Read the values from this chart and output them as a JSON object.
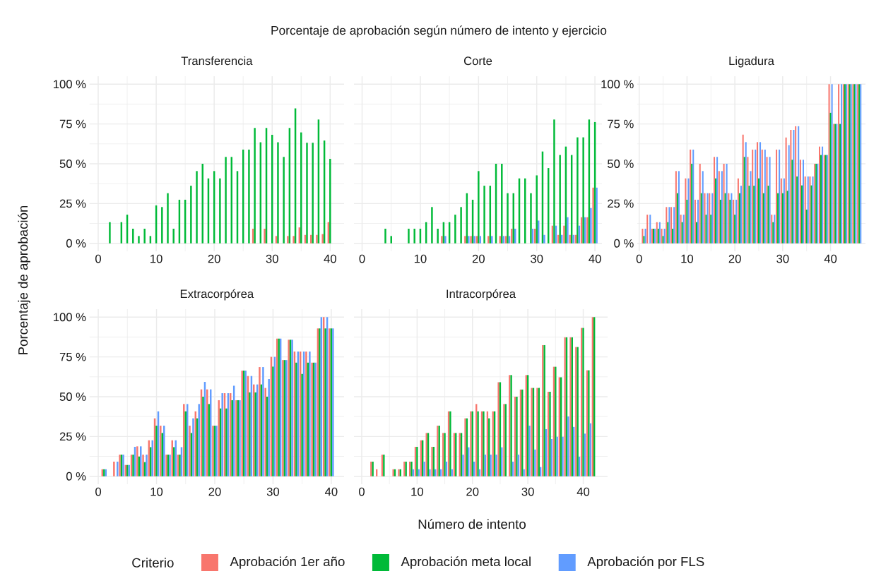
{
  "chart_data": [
    {
      "type": "bar",
      "title": "Porcentaje de aprobación según número de intento y ejercicio",
      "subtitle": "Transferencia",
      "xlabel": "Número de intento",
      "ylabel": "Porcentaje de aprobación",
      "legend_title": "Criterio",
      "legend": "bottom",
      "grid": true,
      "x": [
        2,
        4,
        5,
        6,
        7,
        8,
        9,
        10,
        11,
        12,
        13,
        14,
        15,
        16,
        17,
        18,
        19,
        20,
        21,
        22,
        23,
        24,
        25,
        26,
        27,
        28,
        29,
        30,
        31,
        32,
        33,
        34,
        35,
        36,
        37,
        38,
        39,
        40
      ],
      "xlim": [
        -1.5,
        42.4
      ],
      "xticks": [
        0,
        10,
        20,
        30,
        40
      ],
      "ylim": [
        -5,
        105
      ],
      "yticks": [
        {
          "value": 0,
          "label": "0 %"
        },
        {
          "value": 25,
          "label": "25 %"
        },
        {
          "value": 50,
          "label": "50 %"
        },
        {
          "value": 75,
          "label": "75 %"
        },
        {
          "value": 100,
          "label": "100 %"
        }
      ],
      "series": [
        {
          "name": "Aprobación 1er año",
          "color": "#f8766d",
          "values": [
            null,
            null,
            null,
            null,
            null,
            null,
            null,
            null,
            null,
            null,
            null,
            null,
            null,
            null,
            null,
            null,
            null,
            null,
            null,
            null,
            null,
            null,
            null,
            null,
            9.2,
            null,
            9.2,
            null,
            4.6,
            null,
            4.6,
            4.6,
            10,
            5.3,
            5.3,
            5.3,
            5.8,
            13.3
          ]
        },
        {
          "name": "Aprobación meta local",
          "color": "#00ba38",
          "values": [
            13.3,
            13.3,
            18,
            9.2,
            4.6,
            9.2,
            4.6,
            23.8,
            22.8,
            31.5,
            9.2,
            27.4,
            27.4,
            36.2,
            45.4,
            50,
            40.8,
            45.4,
            40.8,
            54.3,
            54.3,
            45.4,
            58.9,
            58.9,
            72.5,
            63.5,
            72.5,
            68.2,
            63.5,
            54.3,
            72.5,
            84.8,
            69.7,
            63.2,
            63.2,
            77.8,
            64.6,
            53.1
          ]
        },
        {
          "name": "Aprobación por FLS",
          "color": "#619cff",
          "values": [
            null,
            null,
            null,
            null,
            null,
            null,
            null,
            null,
            null,
            null,
            null,
            null,
            null,
            null,
            null,
            null,
            null,
            null,
            null,
            null,
            null,
            null,
            null,
            null,
            null,
            null,
            null,
            null,
            null,
            null,
            null,
            null,
            null,
            null,
            null,
            null,
            null,
            null
          ]
        }
      ]
    },
    {
      "type": "bar",
      "subtitle": "Corte",
      "grid": true,
      "tick_labels": "x",
      "x": [
        4,
        5,
        8,
        9,
        10,
        11,
        12,
        13,
        14,
        15,
        16,
        17,
        18,
        19,
        20,
        21,
        22,
        23,
        24,
        25,
        26,
        27,
        28,
        29,
        30,
        31,
        32,
        33,
        34,
        35,
        36,
        37,
        38,
        39,
        40
      ],
      "xlim": [
        -1.4,
        41.2
      ],
      "xticks": [
        0,
        10,
        20,
        30,
        40
      ],
      "ylim": [
        -5,
        105
      ],
      "yticks": [
        {
          "value": 0,
          "label": null
        },
        {
          "value": 25,
          "label": null
        },
        {
          "value": 50,
          "label": null
        },
        {
          "value": 75,
          "label": null
        },
        {
          "value": 100,
          "label": null
        }
      ],
      "series": [
        {
          "color": "#f8766d",
          "values": [
            null,
            null,
            null,
            null,
            null,
            null,
            null,
            null,
            4.6,
            null,
            null,
            null,
            4.6,
            4.6,
            4.6,
            null,
            4.6,
            null,
            4.6,
            4.6,
            9.2,
            null,
            null,
            null,
            9.2,
            null,
            null,
            11.1,
            5.3,
            11.1,
            5.3,
            5.3,
            16.4,
            16.4,
            35
          ]
        },
        {
          "color": "#00ba38",
          "values": [
            9.2,
            4.6,
            9.2,
            9.2,
            9.2,
            13.3,
            22.8,
            9.2,
            13.3,
            13.3,
            18,
            22.8,
            31.5,
            27.4,
            45.4,
            36.2,
            36.2,
            50,
            50,
            31.5,
            31.5,
            40.8,
            40.8,
            31.5,
            42.7,
            57.7,
            47.3,
            77.8,
            55.5,
            60.8,
            55.5,
            66.6,
            66.6,
            77.8,
            76.2
          ]
        },
        {
          "color": "#619cff",
          "values": [
            null,
            null,
            null,
            null,
            null,
            null,
            null,
            null,
            4.6,
            null,
            null,
            null,
            4.6,
            4.6,
            4.6,
            null,
            4.6,
            null,
            4.6,
            4.6,
            9.2,
            null,
            null,
            9.2,
            14.3,
            5.3,
            null,
            11.1,
            5.3,
            16.4,
            5.3,
            11.1,
            16.4,
            22.2,
            35
          ]
        }
      ]
    },
    {
      "type": "bar",
      "subtitle": "Ligadura",
      "grid": true,
      "x": [
        1,
        2,
        3,
        4,
        5,
        6,
        7,
        8,
        9,
        10,
        11,
        12,
        13,
        14,
        15,
        16,
        17,
        18,
        19,
        20,
        21,
        22,
        23,
        24,
        25,
        26,
        27,
        28,
        29,
        30,
        31,
        32,
        33,
        34,
        35,
        36,
        37,
        38,
        39,
        40,
        41,
        42,
        43,
        44,
        45,
        46
      ],
      "xlim": [
        -0.4,
        47.3
      ],
      "xticks": [
        0,
        10,
        20,
        30,
        40
      ],
      "ylim": [
        -5,
        105
      ],
      "yticks": [
        {
          "value": 0,
          "label": "0 %"
        },
        {
          "value": 25,
          "label": "25 %"
        },
        {
          "value": 50,
          "label": "50 %"
        },
        {
          "value": 75,
          "label": "75 %"
        },
        {
          "value": 100,
          "label": "100 %"
        }
      ],
      "series": [
        {
          "color": "#f8766d",
          "values": [
            9.2,
            18,
            9.2,
            13.3,
            9.2,
            22.8,
            22.8,
            45.4,
            18,
            40.8,
            58.9,
            27.4,
            50,
            31.5,
            31.5,
            54.3,
            45.4,
            50,
            31.5,
            27.4,
            40.8,
            68.3,
            54.3,
            58.9,
            63.6,
            58.9,
            54.3,
            18,
            58.9,
            40.8,
            66.5,
            71.3,
            73.6,
            52.5,
            42,
            42,
            50,
            60.8,
            55.5,
            100,
            75,
            100,
            100,
            100,
            100,
            100
          ]
        },
        {
          "color": "#00ba38",
          "values": [
            4.6,
            null,
            9.2,
            9.2,
            4.6,
            13.3,
            9.2,
            31.5,
            13.3,
            27.4,
            50,
            13.3,
            31.5,
            18,
            18,
            40.8,
            27.4,
            31.5,
            27.4,
            18,
            31.5,
            54.3,
            36.2,
            36.2,
            40.8,
            31.5,
            36.2,
            13.3,
            31.5,
            31.5,
            33,
            52.5,
            42,
            36.4,
            21.2,
            36.4,
            50,
            55.5,
            55.5,
            82,
            75,
            75,
            100,
            100,
            100,
            100
          ]
        },
        {
          "color": "#619cff",
          "values": [
            9.2,
            18,
            9.2,
            13.3,
            9.2,
            22.8,
            22.8,
            45.4,
            18,
            40.8,
            58.9,
            27.4,
            45.4,
            31.5,
            31.5,
            54.3,
            45.4,
            50,
            31.5,
            27.4,
            36.2,
            63.6,
            45.4,
            58.9,
            63.6,
            58.9,
            54.3,
            18,
            58.9,
            40.8,
            61.7,
            71.3,
            73.6,
            52.5,
            42,
            42,
            50,
            60.8,
            55.5,
            100,
            75,
            100,
            100,
            100,
            100,
            100
          ]
        }
      ]
    },
    {
      "type": "bar",
      "subtitle": "Extracorpórea",
      "grid": true,
      "x": [
        1,
        3,
        4,
        5,
        6,
        7,
        8,
        9,
        10,
        11,
        12,
        13,
        14,
        15,
        16,
        17,
        18,
        19,
        20,
        21,
        22,
        23,
        24,
        25,
        26,
        27,
        28,
        29,
        30,
        31,
        32,
        33,
        34,
        35,
        36,
        37,
        38,
        39,
        40
      ],
      "xlim": [
        -1.5,
        42.2
      ],
      "xticks": [
        0,
        10,
        20,
        30,
        40
      ],
      "ylim": [
        -5,
        105
      ],
      "yticks": [
        {
          "value": 0,
          "label": "0 %"
        },
        {
          "value": 25,
          "label": "25 %"
        },
        {
          "value": 50,
          "label": "50 %"
        },
        {
          "value": 75,
          "label": "75 %"
        },
        {
          "value": 100,
          "label": "100 %"
        }
      ],
      "series": [
        {
          "color": "#f8766d",
          "values": [
            4.4,
            9.2,
            13.6,
            7.1,
            13.6,
            18.8,
            13.6,
            22.6,
            36.4,
            31.8,
            13.6,
            22.6,
            13.6,
            45.4,
            31.8,
            40.8,
            54.6,
            54.6,
            31.8,
            47.8,
            52.2,
            52.2,
            47.8,
            66.4,
            63,
            57.7,
            68.6,
            55.5,
            75,
            86.5,
            73,
            85.8,
            78.4,
            78.4,
            78.4,
            71.4,
            92.9,
            100,
            92.9
          ]
        },
        {
          "color": "#00ba38",
          "values": [
            4.4,
            null,
            13.6,
            7.1,
            13.6,
            12.4,
            8.9,
            18.3,
            31.8,
            27.2,
            13.6,
            18.3,
            13.6,
            40.8,
            27.2,
            36.4,
            50,
            45.4,
            31.8,
            42.6,
            42.6,
            47.8,
            47.8,
            66.4,
            52.7,
            52.7,
            57.7,
            50,
            68.9,
            86.5,
            73,
            85.8,
            71.4,
            64.3,
            71.4,
            71.4,
            92.9,
            92.9,
            92.9
          ]
        },
        {
          "color": "#619cff",
          "values": [
            4.4,
            9.2,
            13.6,
            7.1,
            18.5,
            18.8,
            13.6,
            22.6,
            40.8,
            31.8,
            13.6,
            22.6,
            18.3,
            45.4,
            36.4,
            45.4,
            59.3,
            54.6,
            31.8,
            52.2,
            52.2,
            56.9,
            47.8,
            66.4,
            63,
            57.7,
            68.6,
            61.1,
            75,
            86.5,
            73,
            85.8,
            78.4,
            78.4,
            78.4,
            71.4,
            100,
            100,
            92.9
          ]
        }
      ]
    },
    {
      "type": "bar",
      "subtitle": "Intracorpórea",
      "grid": true,
      "tick_labels": "x",
      "x": [
        2,
        3,
        4,
        6,
        7,
        8,
        9,
        10,
        11,
        12,
        13,
        14,
        15,
        16,
        17,
        18,
        19,
        20,
        21,
        22,
        23,
        24,
        25,
        26,
        27,
        28,
        29,
        30,
        31,
        32,
        33,
        34,
        35,
        36,
        37,
        38,
        39,
        40,
        41,
        42
      ],
      "xlim": [
        -1.4,
        44.4
      ],
      "xticks": [
        0,
        10,
        20,
        30,
        40
      ],
      "ylim": [
        -5,
        105
      ],
      "yticks": [
        {
          "value": 0,
          "label": null
        },
        {
          "value": 25,
          "label": null
        },
        {
          "value": 50,
          "label": null
        },
        {
          "value": 75,
          "label": null
        },
        {
          "value": 100,
          "label": null
        }
      ],
      "series": [
        {
          "color": "#f8766d",
          "values": [
            9.2,
            4.4,
            13.6,
            4.4,
            4.4,
            9.2,
            9.2,
            18.5,
            22.6,
            27.2,
            18.5,
            31.8,
            27.2,
            40.8,
            27.2,
            27.2,
            36.4,
            40.8,
            45.4,
            40.8,
            40.8,
            40.8,
            59.1,
            45.4,
            63.6,
            50,
            54.5,
            63.6,
            55.5,
            55.5,
            82.4,
            53.1,
            68.8,
            62.2,
            87.3,
            87.3,
            81.2,
            93.2,
            66.6,
            100
          ]
        },
        {
          "color": "#00ba38",
          "values": [
            9.2,
            null,
            13.6,
            4.4,
            4.4,
            9.2,
            9.2,
            18.5,
            22.6,
            27.2,
            18.5,
            31.8,
            27.2,
            40.8,
            27.2,
            27.2,
            36.4,
            40.8,
            40.8,
            40.8,
            36.4,
            40.8,
            59.1,
            45.4,
            63.6,
            50,
            54.5,
            63.6,
            55.5,
            55.5,
            82.4,
            53.1,
            68.8,
            62.2,
            87.3,
            87.3,
            81.2,
            93.2,
            66.6,
            100
          ]
        },
        {
          "color": "#619cff",
          "values": [
            null,
            null,
            null,
            null,
            null,
            null,
            4.4,
            4.4,
            9.2,
            4.4,
            4.4,
            4.4,
            9.2,
            4.4,
            null,
            13.6,
            18.2,
            9.2,
            4.4,
            13.6,
            13.6,
            13.6,
            18.2,
            null,
            9.2,
            13.6,
            4.4,
            31.8,
            16.8,
            5.8,
            29.6,
            23.4,
            24.8,
            24.8,
            37.6,
            31,
            12.3,
            26.8,
            33.3,
            null
          ]
        }
      ]
    }
  ]
}
